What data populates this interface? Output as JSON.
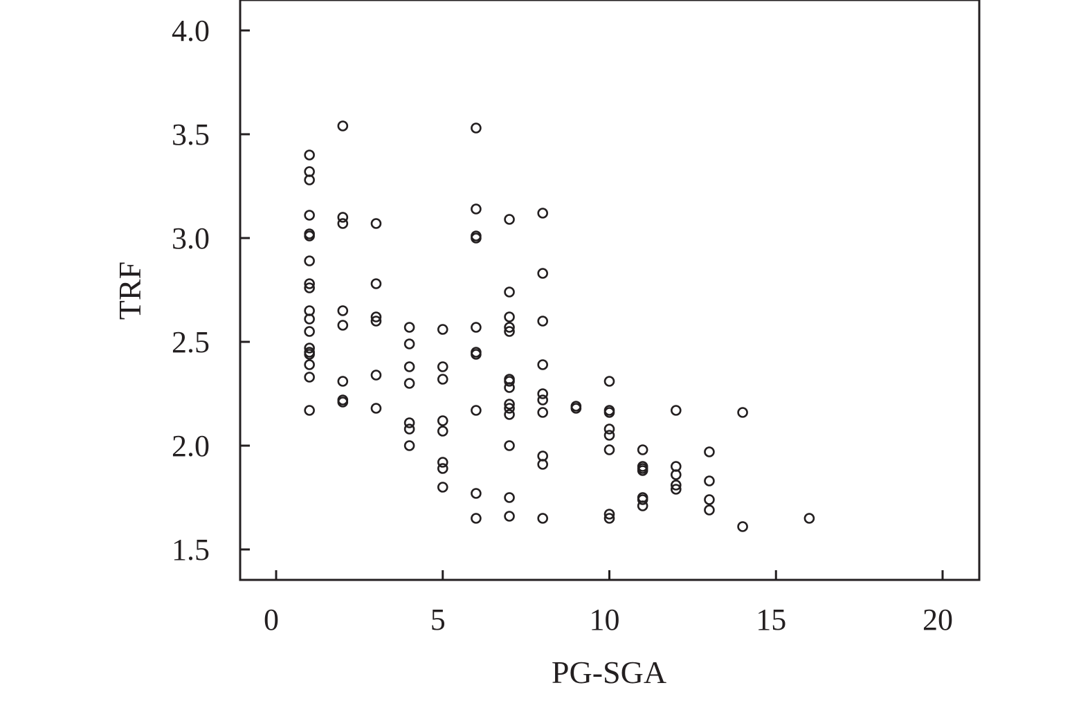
{
  "chart_data": {
    "type": "scatter",
    "title": "",
    "xlabel": "PG-SGA",
    "ylabel": "TRF",
    "xlim": [
      -1,
      21
    ],
    "ylim": [
      1.35,
      4.15
    ],
    "x_ticks": [
      0,
      5,
      10,
      15,
      20
    ],
    "x_tick_labels": [
      "0",
      "5",
      "10",
      "15",
      "20"
    ],
    "y_ticks": [
      1.5,
      2.0,
      2.5,
      3.0,
      3.5,
      4.0
    ],
    "y_tick_labels": [
      "1.5",
      "2.0",
      "2.5",
      "3.0",
      "3.5",
      "4.0"
    ],
    "grid": false,
    "marker": "open-circle",
    "color": "#231f20",
    "points": [
      [
        1,
        3.4
      ],
      [
        1,
        3.32
      ],
      [
        1,
        3.28
      ],
      [
        1,
        3.11
      ],
      [
        1,
        3.02
      ],
      [
        1,
        3.01
      ],
      [
        1,
        2.89
      ],
      [
        1,
        2.78
      ],
      [
        1,
        2.76
      ],
      [
        1,
        2.65
      ],
      [
        1,
        2.61
      ],
      [
        1,
        2.55
      ],
      [
        1,
        2.47
      ],
      [
        1,
        2.45
      ],
      [
        1,
        2.44
      ],
      [
        1,
        2.39
      ],
      [
        1,
        2.33
      ],
      [
        1,
        2.17
      ],
      [
        2,
        3.54
      ],
      [
        2,
        3.1
      ],
      [
        2,
        3.07
      ],
      [
        2,
        2.65
      ],
      [
        2,
        2.58
      ],
      [
        2,
        2.31
      ],
      [
        2,
        2.22
      ],
      [
        2,
        2.21
      ],
      [
        3,
        3.07
      ],
      [
        3,
        2.78
      ],
      [
        3,
        2.62
      ],
      [
        3,
        2.6
      ],
      [
        3,
        2.34
      ],
      [
        3,
        2.18
      ],
      [
        4,
        2.57
      ],
      [
        4,
        2.49
      ],
      [
        4,
        2.38
      ],
      [
        4,
        2.3
      ],
      [
        4,
        2.11
      ],
      [
        4,
        2.08
      ],
      [
        4,
        2.0
      ],
      [
        5,
        2.56
      ],
      [
        5,
        2.38
      ],
      [
        5,
        2.32
      ],
      [
        5,
        2.12
      ],
      [
        5,
        2.07
      ],
      [
        5,
        1.92
      ],
      [
        5,
        1.89
      ],
      [
        5,
        1.8
      ],
      [
        6,
        3.53
      ],
      [
        6,
        3.14
      ],
      [
        6,
        3.01
      ],
      [
        6,
        3.0
      ],
      [
        6,
        2.57
      ],
      [
        6,
        2.45
      ],
      [
        6,
        2.44
      ],
      [
        6,
        2.17
      ],
      [
        6,
        1.77
      ],
      [
        6,
        1.65
      ],
      [
        7,
        3.09
      ],
      [
        7,
        2.74
      ],
      [
        7,
        2.62
      ],
      [
        7,
        2.57
      ],
      [
        7,
        2.55
      ],
      [
        7,
        2.32
      ],
      [
        7,
        2.31
      ],
      [
        7,
        2.28
      ],
      [
        7,
        2.2
      ],
      [
        7,
        2.18
      ],
      [
        7,
        2.15
      ],
      [
        7,
        2.0
      ],
      [
        7,
        1.75
      ],
      [
        7,
        1.66
      ],
      [
        8,
        3.12
      ],
      [
        8,
        2.83
      ],
      [
        8,
        2.6
      ],
      [
        8,
        2.39
      ],
      [
        8,
        2.25
      ],
      [
        8,
        2.22
      ],
      [
        8,
        2.16
      ],
      [
        8,
        1.95
      ],
      [
        8,
        1.91
      ],
      [
        8,
        1.65
      ],
      [
        9,
        2.19
      ],
      [
        9,
        2.18
      ],
      [
        10,
        2.31
      ],
      [
        10,
        2.17
      ],
      [
        10,
        2.16
      ],
      [
        10,
        2.08
      ],
      [
        10,
        2.05
      ],
      [
        10,
        1.98
      ],
      [
        10,
        1.67
      ],
      [
        10,
        1.65
      ],
      [
        11,
        1.98
      ],
      [
        11,
        1.9
      ],
      [
        11,
        1.89
      ],
      [
        11,
        1.88
      ],
      [
        11,
        1.75
      ],
      [
        11,
        1.74
      ],
      [
        11,
        1.71
      ],
      [
        12,
        2.17
      ],
      [
        12,
        1.9
      ],
      [
        12,
        1.86
      ],
      [
        12,
        1.81
      ],
      [
        12,
        1.79
      ],
      [
        13,
        1.97
      ],
      [
        13,
        1.83
      ],
      [
        13,
        1.74
      ],
      [
        13,
        1.69
      ],
      [
        14,
        2.16
      ],
      [
        14,
        1.61
      ],
      [
        16,
        1.65
      ]
    ]
  }
}
